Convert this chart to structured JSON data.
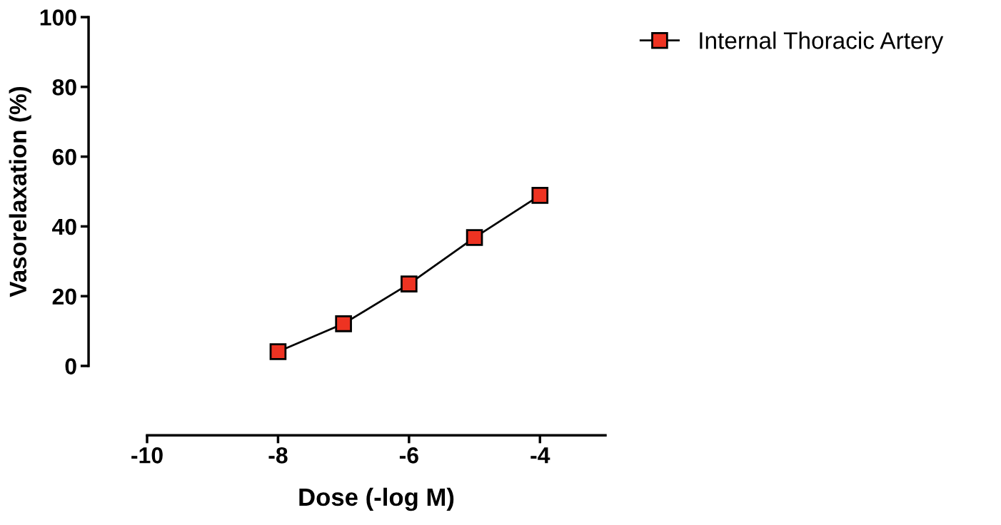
{
  "chart_data": {
    "type": "line",
    "xlabel": "Dose (-log M)",
    "ylabel": "Vasorelaxation (%)",
    "x": [
      -8,
      -7,
      -6,
      -5,
      -4
    ],
    "series": [
      {
        "name": "Internal Thoracic Artery",
        "color": "#ee3322",
        "values": [
          4.1,
          12.1,
          23.5,
          36.8,
          48.9
        ]
      }
    ],
    "xlim": [
      -10,
      -3
    ],
    "xticks": [
      -10,
      -8,
      -6,
      -4
    ],
    "ylim": [
      0,
      100
    ],
    "yticks": [
      0,
      20,
      40,
      60,
      80,
      100
    ],
    "marker": "square",
    "line_style": "solid",
    "grid": false,
    "legend": "top right"
  }
}
